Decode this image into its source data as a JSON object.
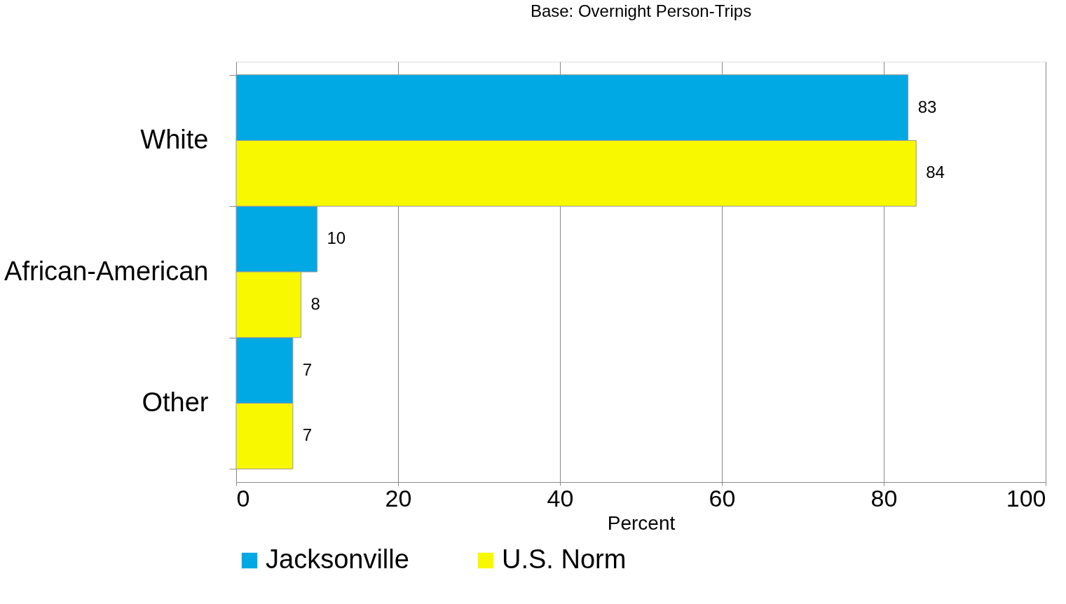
{
  "chart_data": {
    "type": "bar",
    "orientation": "horizontal",
    "title": "Base: Overnight Person-Trips",
    "xlabel": "Percent",
    "categories": [
      "White",
      "African-American",
      "Other"
    ],
    "series": [
      {
        "name": "Jacksonville",
        "color": "#00a8e4",
        "values": [
          83,
          10,
          7
        ]
      },
      {
        "name": "U.S. Norm",
        "color": "#f8f800",
        "values": [
          84,
          8,
          7
        ]
      }
    ],
    "xlim": [
      0,
      100
    ],
    "xticks": [
      0,
      20,
      40,
      60,
      80,
      100
    ],
    "grid": "x",
    "legend": "bottom",
    "data_labels": true
  }
}
